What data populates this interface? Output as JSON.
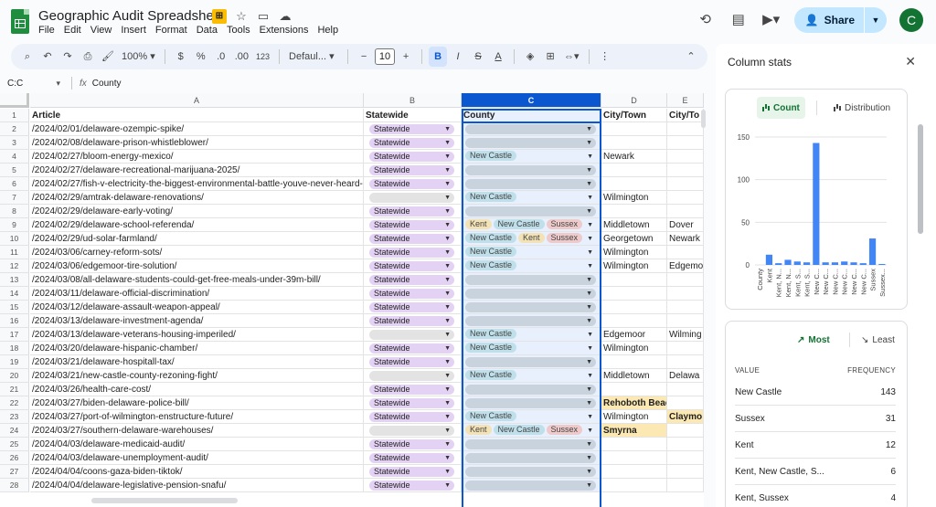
{
  "title_bar": {
    "doc_title": "Geographic Audit Spreadsheet",
    "menu": [
      "File",
      "Edit",
      "View",
      "Insert",
      "Format",
      "Data",
      "Tools",
      "Extensions",
      "Help"
    ],
    "share_label": "Share",
    "avatar_letter": "C"
  },
  "toolbar": {
    "zoom": "100%",
    "currency": "$",
    "percent": "%",
    "dec_decrease": ".0",
    "dec_increase": ".00",
    "number_format": "123",
    "font": "Defaul...",
    "font_size": "10"
  },
  "formula_bar": {
    "name_box": "C:C",
    "fx": "fx",
    "content": "County"
  },
  "sheet": {
    "columns": [
      "A",
      "B",
      "C",
      "D",
      "E"
    ],
    "header_row": {
      "a": "Article",
      "b": "Statewide",
      "c": "County",
      "d": "City/Town",
      "e": "City/To"
    },
    "rows": [
      {
        "n": "2",
        "a": "/2024/02/01/delaware-ozempic-spike/",
        "b": "Statewide",
        "c": [],
        "d": "",
        "e": ""
      },
      {
        "n": "3",
        "a": "/2024/02/08/delaware-prison-whistleblower/",
        "b": "Statewide",
        "c": [],
        "d": "",
        "e": ""
      },
      {
        "n": "4",
        "a": "/2024/02/27/bloom-energy-mexico/",
        "b": "Statewide",
        "c": [
          "New Castle"
        ],
        "d": "Newark",
        "e": ""
      },
      {
        "n": "5",
        "a": "/2024/02/27/delaware-recreational-marijuana-2025/",
        "b": "Statewide",
        "c": [],
        "d": "",
        "e": ""
      },
      {
        "n": "6",
        "a": "/2024/02/27/fish-v-electricity-the-biggest-environmental-battle-youve-never-heard-of/",
        "b": "Statewide",
        "c": [],
        "d": "",
        "e": ""
      },
      {
        "n": "7",
        "a": "/2024/02/29/amtrak-delaware-renovations/",
        "b": "",
        "c": [
          "New Castle"
        ],
        "d": "Wilmington",
        "e": ""
      },
      {
        "n": "8",
        "a": "/2024/02/29/delaware-early-voting/",
        "b": "Statewide",
        "c": [],
        "d": "",
        "e": ""
      },
      {
        "n": "9",
        "a": "/2024/02/29/delaware-school-referenda/",
        "b": "Statewide",
        "c": [
          "Kent",
          "New Castle",
          "Sussex"
        ],
        "d": "Middletown",
        "e": "Dover"
      },
      {
        "n": "10",
        "a": "/2024/02/29/ud-solar-farmland/",
        "b": "Statewide",
        "c": [
          "New Castle",
          "Kent",
          "Sussex"
        ],
        "d": "Georgetown",
        "e": "Newark"
      },
      {
        "n": "11",
        "a": "/2024/03/06/carney-reform-sots/",
        "b": "Statewide",
        "c": [
          "New Castle"
        ],
        "d": "Wilmington",
        "e": ""
      },
      {
        "n": "12",
        "a": "/2024/03/06/edgemoor-tire-solution/",
        "b": "Statewide",
        "c": [
          "New Castle"
        ],
        "d": "Wilmington",
        "e": "Edgemo"
      },
      {
        "n": "13",
        "a": "/2024/03/08/all-delaware-students-could-get-free-meals-under-39m-bill/",
        "b": "Statewide",
        "c": [],
        "d": "",
        "e": ""
      },
      {
        "n": "14",
        "a": "/2024/03/11/delaware-official-discrimination/",
        "b": "Statewide",
        "c": [],
        "d": "",
        "e": ""
      },
      {
        "n": "15",
        "a": "/2024/03/12/delaware-assault-weapon-appeal/",
        "b": "Statewide",
        "c": [],
        "d": "",
        "e": ""
      },
      {
        "n": "16",
        "a": "/2024/03/13/delaware-investment-agenda/",
        "b": "Statewide",
        "c": [],
        "d": "",
        "e": ""
      },
      {
        "n": "17",
        "a": "/2024/03/13/delaware-veterans-housing-imperiled/",
        "b": "",
        "c": [
          "New Castle"
        ],
        "d": "Edgemoor",
        "e": "Wilming"
      },
      {
        "n": "18",
        "a": "/2024/03/20/delaware-hispanic-chamber/",
        "b": "Statewide",
        "c": [
          "New Castle"
        ],
        "d": "Wilmington",
        "e": ""
      },
      {
        "n": "19",
        "a": "/2024/03/21/delaware-hospitall-tax/",
        "b": "Statewide",
        "c": [],
        "d": "",
        "e": ""
      },
      {
        "n": "20",
        "a": "/2024/03/21/new-castle-county-rezoning-fight/",
        "b": "",
        "c": [
          "New Castle"
        ],
        "d": "Middletown",
        "e": "Delawa"
      },
      {
        "n": "21",
        "a": "/2024/03/26/health-care-cost/",
        "b": "Statewide",
        "c": [],
        "d": "",
        "e": ""
      },
      {
        "n": "22",
        "a": "/2024/03/27/biden-delaware-police-bill/",
        "b": "Statewide",
        "c": [],
        "d": "Rehoboth Beach",
        "e": "",
        "d_hl": true
      },
      {
        "n": "23",
        "a": "/2024/03/27/port-of-wilmington-enstructure-future/",
        "b": "Statewide",
        "c": [
          "New Castle"
        ],
        "d": "Wilmington",
        "e": "Claymo",
        "e_hl": true
      },
      {
        "n": "24",
        "a": "/2024/03/27/southern-delaware-warehouses/",
        "b": "",
        "c": [
          "Kent",
          "New Castle",
          "Sussex"
        ],
        "d": "Smyrna",
        "e": "",
        "d_hl": true
      },
      {
        "n": "25",
        "a": "/2024/04/03/delaware-medicaid-audit/",
        "b": "Statewide",
        "c": [],
        "d": "",
        "e": ""
      },
      {
        "n": "26",
        "a": "/2024/04/03/delaware-unemployment-audit/",
        "b": "Statewide",
        "c": [],
        "d": "",
        "e": ""
      },
      {
        "n": "27",
        "a": "/2024/04/04/coons-gaza-biden-tiktok/",
        "b": "Statewide",
        "c": [],
        "d": "",
        "e": ""
      },
      {
        "n": "28",
        "a": "/2024/04/04/delaware-legislative-pension-snafu/",
        "b": "Statewide",
        "c": [],
        "d": "",
        "e": ""
      }
    ]
  },
  "panel": {
    "title": "Column stats",
    "count_label": "Count",
    "distribution_label": "Distribution",
    "most_label": "Most",
    "least_label": "Least",
    "value_header": "VALUE",
    "frequency_header": "FREQUENCY",
    "frequency": [
      {
        "value": "New Castle",
        "count": "143"
      },
      {
        "value": "Sussex",
        "count": "31"
      },
      {
        "value": "Kent",
        "count": "12"
      },
      {
        "value": "Kent, New Castle, S...",
        "count": "6"
      },
      {
        "value": "Kent, Sussex",
        "count": "4"
      }
    ]
  },
  "chart_data": {
    "type": "bar",
    "categories": [
      "County",
      "Kent",
      "Kent, N...",
      "Kent, N...",
      "Kent, S...",
      "Kent, S...",
      "New C...",
      "New C...",
      "New C...",
      "New C...",
      "New C...",
      "New C...",
      "Sussex",
      "Sussex..."
    ],
    "values": [
      0,
      12,
      2,
      6,
      4,
      3,
      143,
      3,
      3,
      4,
      3,
      2,
      31,
      1
    ],
    "yticks": [
      "0",
      "50",
      "100",
      "150"
    ],
    "ylim": [
      0,
      150
    ],
    "color": "#4285f4"
  }
}
